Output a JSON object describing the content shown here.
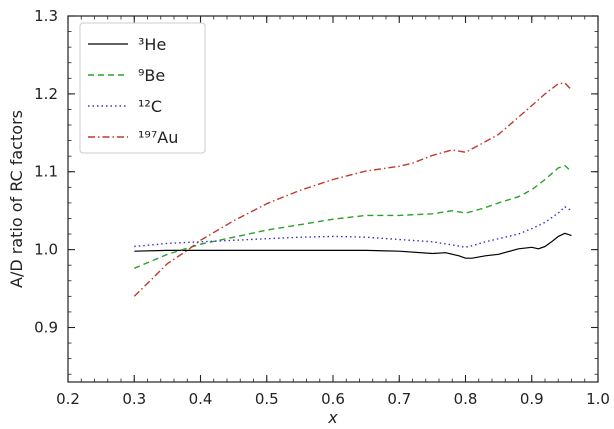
{
  "chart_data": {
    "type": "line",
    "xlabel": "x",
    "ylabel": "A/D ratio of RC factors",
    "xlim": [
      0.2,
      1.0
    ],
    "ylim": [
      0.83,
      1.3
    ],
    "xticks": [
      0.2,
      0.3,
      0.4,
      0.5,
      0.6,
      0.7,
      0.8,
      0.9,
      1.0
    ],
    "yticks": [
      0.9,
      1.0,
      1.1,
      1.2,
      1.3
    ],
    "xtick_labels": [
      "0.2",
      "0.3",
      "0.4",
      "0.5",
      "0.6",
      "0.7",
      "0.8",
      "0.9",
      "1.0"
    ],
    "ytick_labels": [
      "0.9",
      "1.0",
      "1.1",
      "1.2",
      "1.3"
    ],
    "grid": false,
    "legend_position": "top-left",
    "series": [
      {
        "name": "³He",
        "color": "#000000",
        "style": "solid",
        "x": [
          0.3,
          0.35,
          0.4,
          0.5,
          0.6,
          0.65,
          0.7,
          0.75,
          0.77,
          0.79,
          0.8,
          0.81,
          0.83,
          0.85,
          0.88,
          0.9,
          0.91,
          0.92,
          0.93,
          0.94,
          0.95,
          0.96
        ],
        "y": [
          0.998,
          0.999,
          0.999,
          0.999,
          0.999,
          0.999,
          0.998,
          0.995,
          0.996,
          0.992,
          0.989,
          0.989,
          0.992,
          0.994,
          1.001,
          1.003,
          1.001,
          1.004,
          1.01,
          1.017,
          1.021,
          1.018
        ]
      },
      {
        "name": "⁹Be",
        "color": "#2ca02c",
        "style": "dashed",
        "x": [
          0.3,
          0.35,
          0.4,
          0.45,
          0.5,
          0.55,
          0.6,
          0.65,
          0.7,
          0.75,
          0.78,
          0.8,
          0.81,
          0.83,
          0.85,
          0.88,
          0.9,
          0.92,
          0.94,
          0.95,
          0.96
        ],
        "y": [
          0.976,
          0.994,
          1.007,
          1.016,
          1.025,
          1.032,
          1.039,
          1.044,
          1.044,
          1.046,
          1.05,
          1.047,
          1.049,
          1.054,
          1.06,
          1.068,
          1.077,
          1.09,
          1.105,
          1.108,
          1.1
        ]
      },
      {
        "name": "¹²C",
        "color": "#3333cc",
        "style": "dotted",
        "x": [
          0.3,
          0.35,
          0.4,
          0.45,
          0.5,
          0.55,
          0.6,
          0.65,
          0.7,
          0.75,
          0.78,
          0.8,
          0.81,
          0.83,
          0.85,
          0.88,
          0.9,
          0.92,
          0.94,
          0.95,
          0.96
        ],
        "y": [
          1.004,
          1.008,
          1.01,
          1.012,
          1.014,
          1.016,
          1.017,
          1.016,
          1.013,
          1.01,
          1.006,
          1.003,
          1.005,
          1.01,
          1.014,
          1.02,
          1.027,
          1.035,
          1.047,
          1.055,
          1.05
        ]
      },
      {
        "name": "¹⁹⁷Au",
        "color": "#c0392b",
        "style": "dashdot",
        "x": [
          0.3,
          0.33,
          0.35,
          0.38,
          0.4,
          0.45,
          0.5,
          0.55,
          0.6,
          0.65,
          0.7,
          0.72,
          0.75,
          0.78,
          0.8,
          0.82,
          0.85,
          0.88,
          0.9,
          0.92,
          0.94,
          0.95,
          0.96
        ],
        "y": [
          0.94,
          0.965,
          0.982,
          0.999,
          1.012,
          1.037,
          1.059,
          1.076,
          1.09,
          1.101,
          1.107,
          1.111,
          1.121,
          1.128,
          1.125,
          1.134,
          1.148,
          1.17,
          1.185,
          1.2,
          1.213,
          1.214,
          1.205
        ]
      }
    ]
  }
}
